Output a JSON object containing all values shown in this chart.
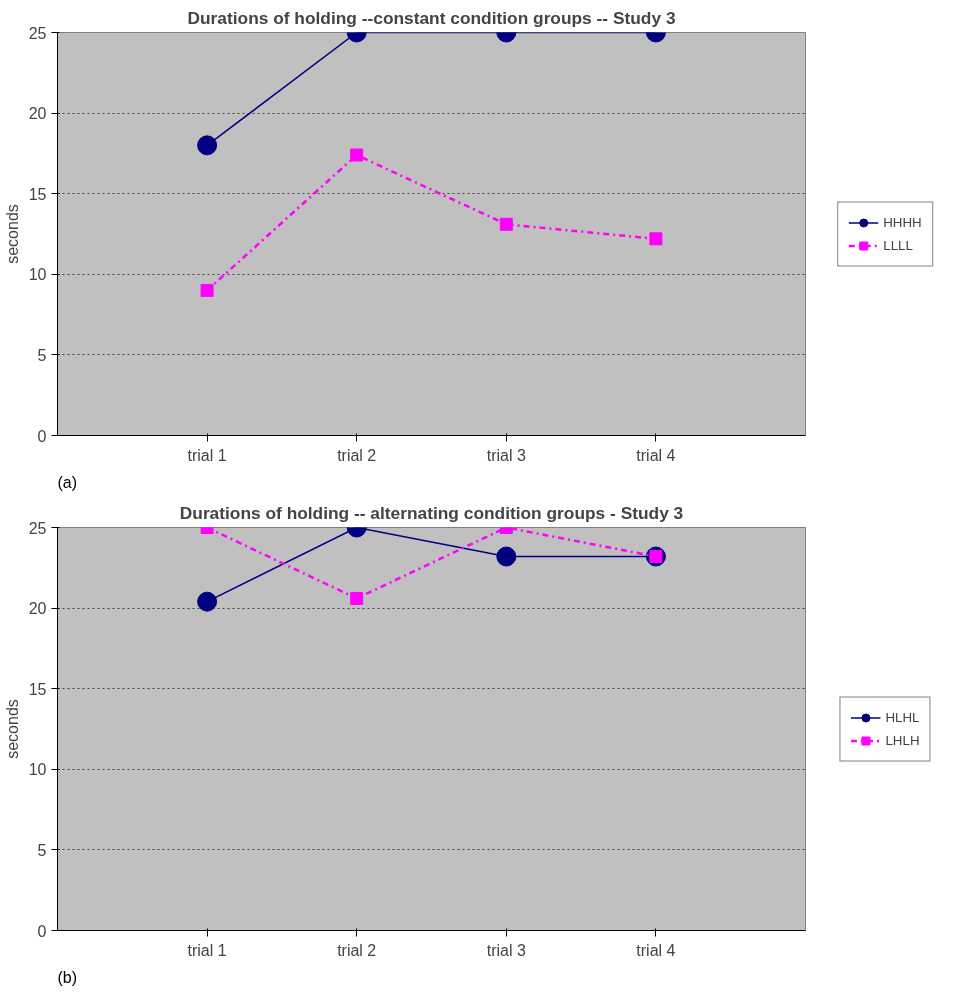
{
  "chart_data": [
    {
      "type": "line",
      "title": "Durations of holding --constant condition groups -- Study 3",
      "ylabel": "seconds",
      "categories": [
        "trial 1",
        "trial 2",
        "trial 3",
        "trial 4"
      ],
      "ylim": [
        0,
        25
      ],
      "yticks": [
        0,
        5,
        10,
        15,
        20,
        25
      ],
      "grid": "y",
      "legend": "right",
      "annotations": [
        "(a)"
      ],
      "series": [
        {
          "name": "HHHH",
          "color": "#000080",
          "marker": "circle",
          "line_style": "solid",
          "values": [
            18,
            25,
            25,
            25
          ]
        },
        {
          "name": "LLLL",
          "color": "#ff00ff",
          "marker": "square",
          "line_style": "dashdot",
          "values": [
            9,
            17.4,
            13.1,
            12.2
          ]
        }
      ]
    },
    {
      "type": "line",
      "title": "Durations of holding -- alternating condition groups - Study 3",
      "ylabel": "seconds",
      "categories": [
        "trial 1",
        "trial 2",
        "trial 3",
        "trial 4"
      ],
      "ylim": [
        0,
        25
      ],
      "yticks": [
        0,
        5,
        10,
        15,
        20,
        25
      ],
      "grid": "y",
      "legend": "right",
      "annotations": [
        "(b)"
      ],
      "series": [
        {
          "name": "HLHL",
          "color": "#000080",
          "marker": "circle",
          "line_style": "solid",
          "values": [
            20.4,
            25,
            23.2,
            23.2
          ]
        },
        {
          "name": "LHLH",
          "color": "#ff00ff",
          "marker": "square",
          "line_style": "dashdot",
          "values": [
            25,
            20.6,
            25,
            23.2
          ]
        }
      ]
    }
  ]
}
